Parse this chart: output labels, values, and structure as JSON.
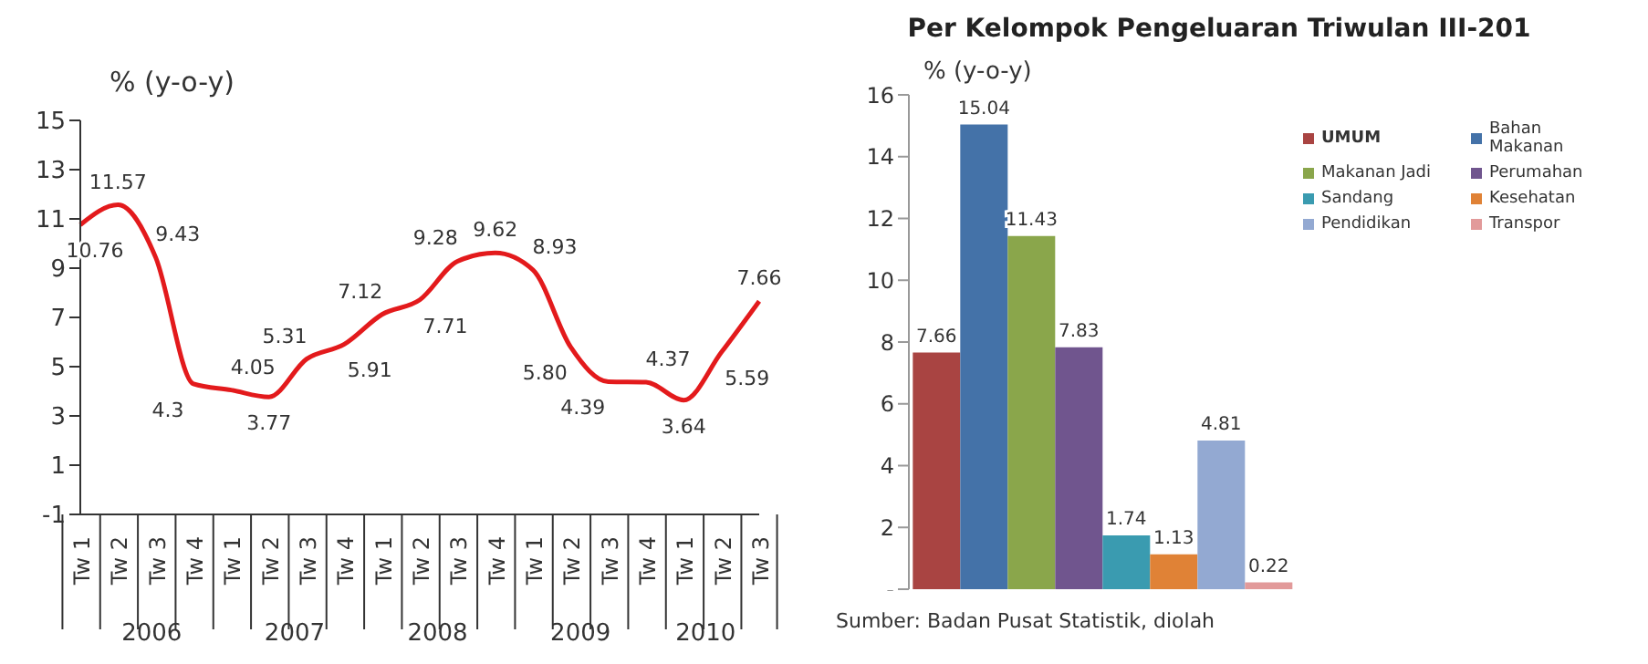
{
  "chart_data": [
    {
      "type": "line",
      "ylabel": "% (y-o-y)",
      "categories": [
        "Tw 1",
        "Tw 2",
        "Tw 3",
        "Tw 4",
        "Tw 1",
        "Tw 2",
        "Tw 3",
        "Tw 4",
        "Tw 1",
        "Tw 2",
        "Tw 3",
        "Tw 4",
        "Tw 1",
        "Tw 2",
        "Tw 3",
        "Tw 4",
        "Tw 1",
        "Tw 2",
        "Tw 3"
      ],
      "series": [
        {
          "color": "#e31a1c",
          "values": [
            10.76,
            11.57,
            9.43,
            4.3,
            4.05,
            3.77,
            5.31,
            5.91,
            7.12,
            7.71,
            9.28,
            9.62,
            8.93,
            5.8,
            4.39,
            4.37,
            3.64,
            5.59,
            7.66
          ]
        }
      ],
      "value_labels": [
        "10.76",
        "11.57",
        "9.43",
        "4.3",
        "4.05",
        "3.77",
        "5.31",
        "5.91",
        "7.12",
        "7.71",
        "9.28",
        "9.62",
        "8.93",
        "5.80",
        "4.39",
        "4.37",
        "3.64",
        "5.59",
        "7.66"
      ],
      "annotations": [
        "2006",
        "2007",
        "2008",
        "2009",
        "2010"
      ],
      "ylim": [
        -1,
        15
      ],
      "yticks": [
        -1,
        1,
        3,
        5,
        7,
        9,
        11,
        13,
        15
      ],
      "grid": false,
      "legend": false,
      "marker": "none",
      "line_style": "solid"
    },
    {
      "type": "bar",
      "title": "Per Kelompok Pengeluaran Triwulan III-201",
      "ylabel": "% (y-o-y)",
      "categories": [
        null
      ],
      "series": [
        {
          "name": "UMUM",
          "color": "#a94442",
          "values": [
            7.66
          ]
        },
        {
          "name": "Bahan Makanan",
          "color": "#4472a8",
          "values": [
            15.04
          ]
        },
        {
          "name": "Makanan Jadi",
          "color": "#8aa64b",
          "values": [
            11.43
          ]
        },
        {
          "name": "Perumahan",
          "color": "#70558e",
          "values": [
            7.83
          ]
        },
        {
          "name": "Sandang",
          "color": "#3a9bb0",
          "values": [
            1.74
          ]
        },
        {
          "name": "Kesehatan",
          "color": "#e08236",
          "values": [
            1.13
          ]
        },
        {
          "name": "Pendidikan",
          "color": "#93a9d2",
          "values": [
            4.81
          ]
        },
        {
          "name": "Transpor",
          "color": "#e29a9a",
          "values": [
            0.22
          ]
        }
      ],
      "data_labels": true,
      "annotations": [
        "Sumber: Badan Pusat Statistik, diolah"
      ],
      "ylim": [
        0,
        16
      ],
      "yticks": [
        {
          "value": 0,
          "label": "-"
        },
        2,
        4,
        6,
        8,
        10,
        12,
        14,
        16
      ],
      "grid": false,
      "legend": "top right"
    }
  ]
}
